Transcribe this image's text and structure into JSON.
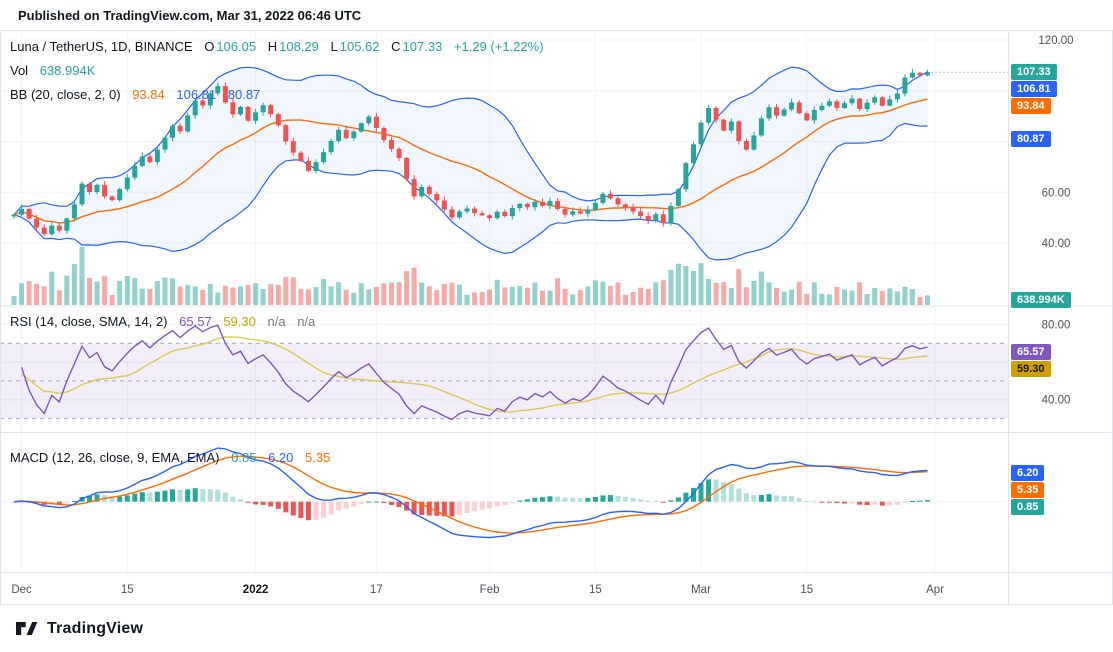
{
  "published_bar": {
    "text": "Published on TradingView.com, Mar 31, 2022 06:46 UTC"
  },
  "footer": {
    "brand": "TradingView"
  },
  "colors": {
    "up": "#26a69a",
    "down": "#ef5350",
    "vol_up": "rgba(38,166,154,0.5)",
    "vol_down": "rgba(239,83,80,0.5)",
    "bb_line": "#2962ff",
    "bb_fill": "rgba(41,98,255,0.06)",
    "bb_basis": "#ff6d00",
    "rsi_line": "#7e57c2",
    "rsi_ma": "#e0c94d",
    "rsi_band_fill": "rgba(126,87,194,0.1)",
    "rsi_band_line": "#a7aab4",
    "macd_line": "#2962ff",
    "macd_signal": "#ff6d00",
    "hist_up_grow": "#26a69a",
    "hist_up_fall": "#b2dfdb",
    "hist_down_grow": "#ffcdd2",
    "hist_down_fall": "#ef5350",
    "grid": "#f0f3fa",
    "separator": "#e0e3eb",
    "axis_text": "#50535e",
    "last_price_line": "#26a69a"
  },
  "legend": {
    "title": "Luna / TetherUS, 1D, BINANCE",
    "o_label": "O",
    "o_value": "106.05",
    "h_label": "H",
    "h_value": "108.29",
    "l_label": "L",
    "l_value": "105.62",
    "c_label": "C",
    "c_value": "107.33",
    "change": "+1.29 (+1.22%)",
    "vol_label": "Vol",
    "vol_value": "638.994K",
    "bb_label": "BB (20, close, 2, 0)",
    "bb_basis": "93.84",
    "bb_upper": "106.81",
    "bb_lower": "80.87",
    "rsi_label": "RSI (14, close, SMA, 14, 2)",
    "rsi_value": "65.57",
    "rsi_ma": "59.30",
    "rsi_na1": "n/a",
    "rsi_na2": "n/a",
    "macd_label": "MACD (12, 26, close, 9, EMA, EMA)",
    "macd_hist": "0.85",
    "macd_value": "6.20",
    "macd_signal": "5.35"
  },
  "axis_chips": {
    "price": [
      {
        "text": "107.33",
        "bg": "#26a69a",
        "fg": "#ffffff",
        "value": 107.33
      },
      {
        "text": "106.81",
        "bg": "#2962ff",
        "fg": "#ffffff",
        "value": 106.81
      },
      {
        "text": "93.84",
        "bg": "#ff6d00",
        "fg": "#ffffff",
        "value": 93.84
      },
      {
        "text": "80.87",
        "bg": "#2962ff",
        "fg": "#ffffff",
        "value": 80.87
      }
    ],
    "volume": {
      "text": "638.994K",
      "bg": "#26a69a",
      "fg": "#ffffff"
    },
    "rsi": [
      {
        "text": "65.57",
        "bg": "#7e57c2",
        "fg": "#ffffff",
        "value": 65.57
      },
      {
        "text": "59.30",
        "bg": "#d1a000",
        "fg": "#131722",
        "value": 59.3
      }
    ],
    "macd": [
      {
        "text": "6.20",
        "bg": "#2962ff",
        "fg": "#ffffff",
        "value": 6.2
      },
      {
        "text": "5.35",
        "bg": "#ff6d00",
        "fg": "#ffffff",
        "value": 5.35
      },
      {
        "text": "0.85",
        "bg": "#26a69a",
        "fg": "#ffffff",
        "value": 0.85
      }
    ]
  },
  "chart_data": {
    "type": "candlestick",
    "symbol": "Luna / TetherUS",
    "interval": "1D",
    "exchange": "BINANCE",
    "last_ohlc": {
      "open": 106.05,
      "high": 108.29,
      "low": 105.62,
      "close": 107.33
    },
    "last_volume_display": "638.994K",
    "price_axis_ticks": [
      120,
      60,
      40
    ],
    "rsi_axis_ticks": [
      80,
      40
    ],
    "rsi_bands": [
      70,
      50,
      30
    ],
    "indicators": {
      "bb": {
        "period": 20,
        "stddev": 2,
        "basis": 93.84,
        "upper": 106.81,
        "lower": 80.87
      },
      "rsi": {
        "period": 14,
        "ma_period": 14,
        "value": 65.57,
        "ma_value": 59.3
      },
      "macd": {
        "fast": 12,
        "slow": 26,
        "signal": 9,
        "macd_value": 6.2,
        "signal_value": 5.35,
        "hist_value": 0.85
      }
    },
    "x_labels": [
      {
        "text": "Dec",
        "index": 1
      },
      {
        "text": "15",
        "index": 15
      },
      {
        "text": "2022",
        "index": 32,
        "bold": true
      },
      {
        "text": "17",
        "index": 48
      },
      {
        "text": "Feb",
        "index": 63
      },
      {
        "text": "15",
        "index": 77
      },
      {
        "text": "Mar",
        "index": 91
      },
      {
        "text": "15",
        "index": 105
      },
      {
        "text": "Apr",
        "index": 122
      }
    ],
    "closes": [
      51.2,
      53.4,
      49.6,
      46.1,
      43.5,
      46.8,
      44.9,
      49.7,
      55.2,
      63.4,
      60.1,
      62.8,
      58.3,
      56.9,
      61.2,
      65.8,
      70.4,
      74.1,
      71.9,
      76.8,
      81.5,
      86.2,
      84.0,
      90.3,
      96.1,
      94.2,
      99.0,
      101.8,
      95.4,
      90.7,
      93.6,
      88.2,
      91.5,
      94.3,
      90.8,
      86.4,
      80.1,
      75.6,
      72.3,
      68.4,
      71.9,
      75.8,
      80.2,
      84.6,
      81.3,
      83.9,
      87.2,
      89.8,
      85.3,
      80.6,
      77.1,
      73.5,
      65.2,
      58.4,
      62.1,
      59.3,
      56.8,
      53.2,
      50.1,
      52.4,
      53.6,
      51.8,
      50.9,
      49.8,
      52.3,
      50.6,
      53.8,
      55.4,
      54.1,
      56.2,
      54.7,
      56.5,
      53.4,
      51.2,
      52.5,
      51.6,
      53.1,
      55.8,
      59.4,
      57.6,
      55.2,
      54.1,
      52.4,
      50.6,
      48.9,
      51.3,
      47.8,
      54.6,
      61.2,
      71.5,
      78.9,
      87.4,
      93.2,
      88.6,
      84.3,
      87.9,
      80.2,
      76.8,
      82.4,
      89.1,
      93.5,
      90.2,
      92.6,
      95.4,
      91.1,
      88.3,
      92.4,
      94.1,
      95.8,
      93.2,
      95.1,
      96.9,
      92.8,
      95.3,
      97.4,
      94.1,
      96.6,
      98.9,
      105.2,
      107.1,
      106.05,
      107.33
    ]
  }
}
